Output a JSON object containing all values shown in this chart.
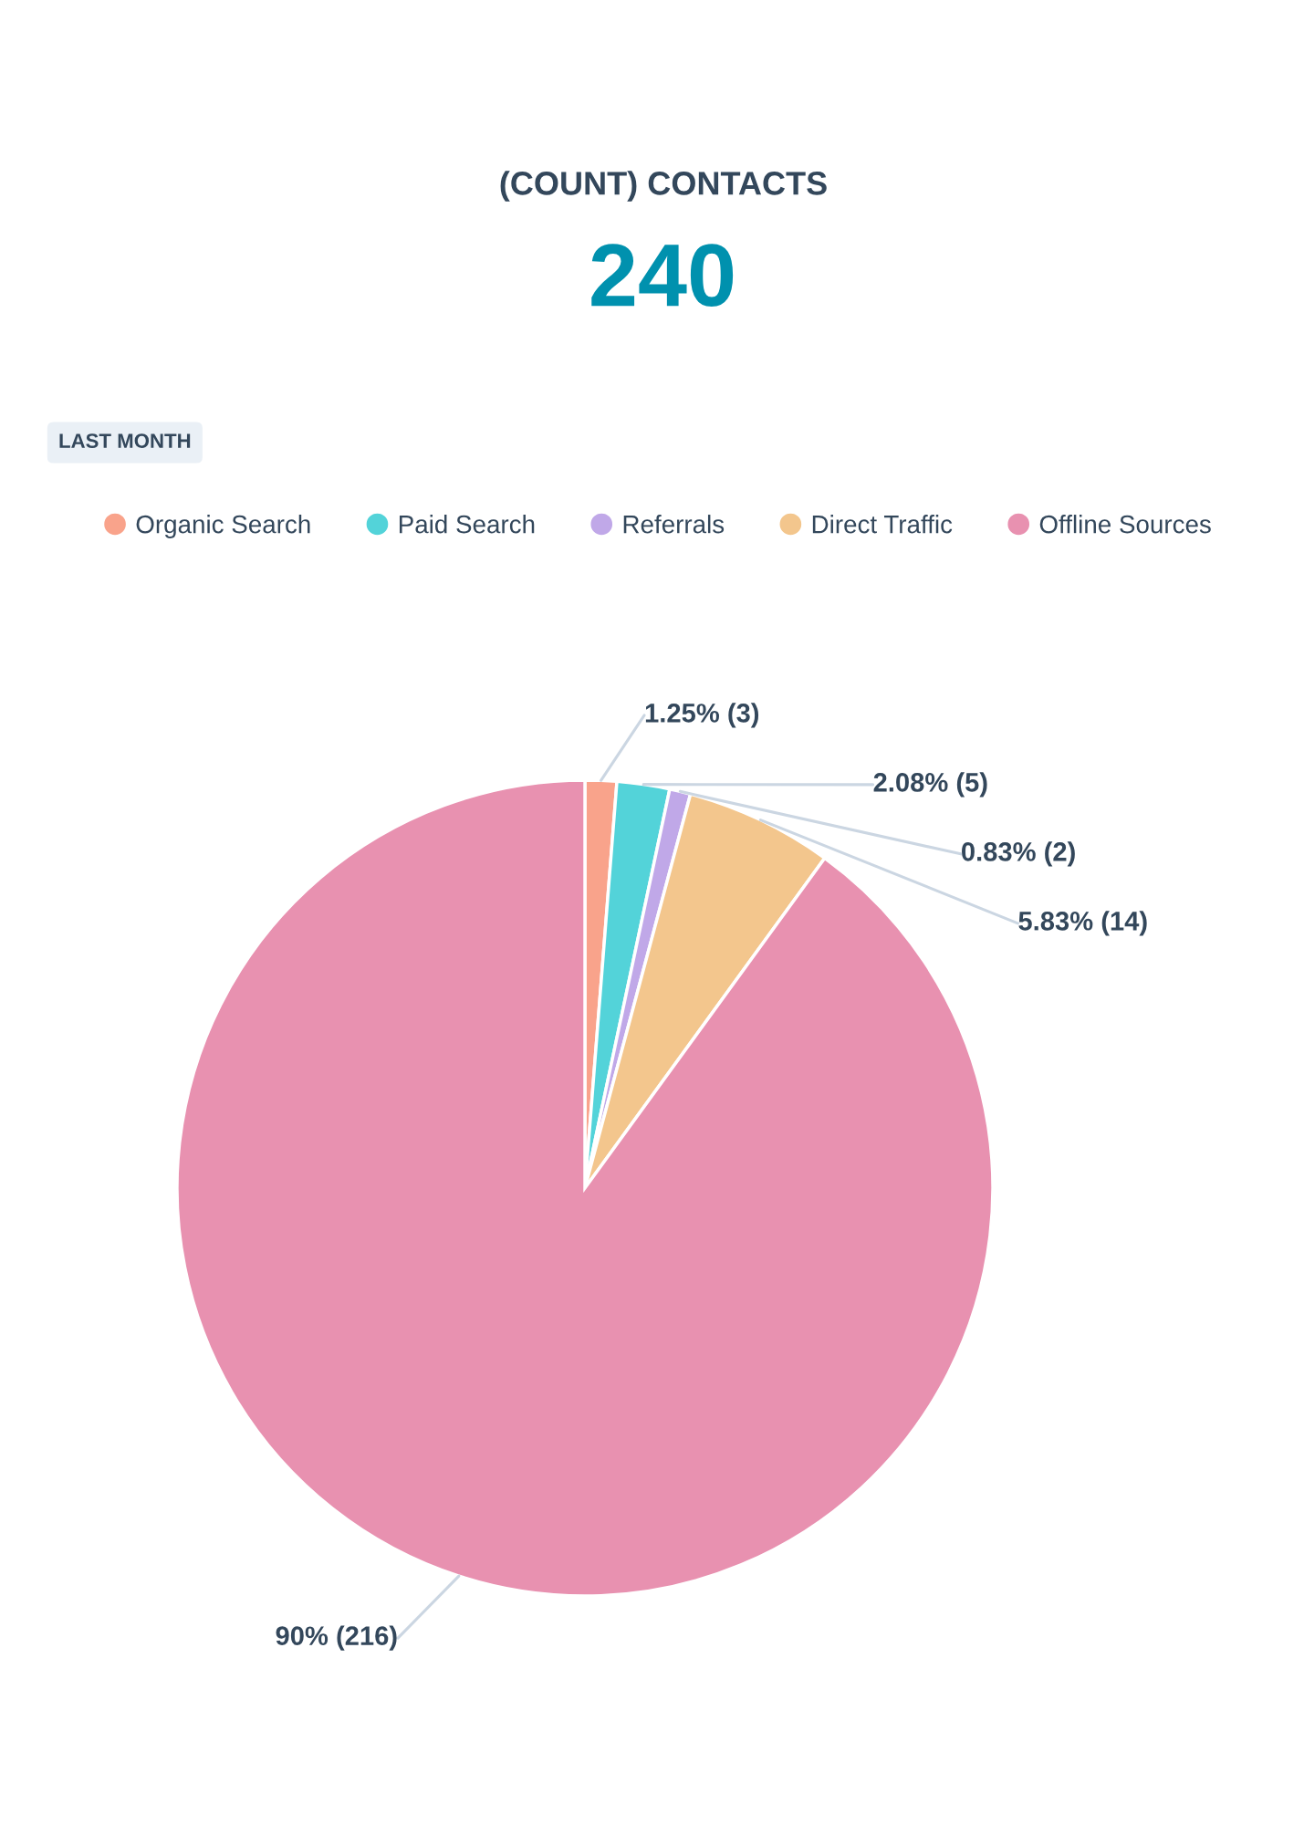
{
  "chart_data": {
    "type": "pie",
    "title": "(COUNT) CONTACTS",
    "subtitle": "240",
    "annotations": [
      "LAST MONTH"
    ],
    "categories": [
      "Organic Search",
      "Paid Search",
      "Referrals",
      "Direct Traffic",
      "Offline Sources"
    ],
    "values": [
      3,
      5,
      2,
      14,
      216
    ],
    "colors": [
      "#f9a38b",
      "#53d3d9",
      "#c0a8e8",
      "#f3c68d",
      "#e891b0"
    ],
    "value_labels": [
      "1.25% (3)",
      "2.08% (5)",
      "0.83% (2)",
      "5.83% (14)",
      "90% (216)"
    ],
    "legend": "top"
  }
}
